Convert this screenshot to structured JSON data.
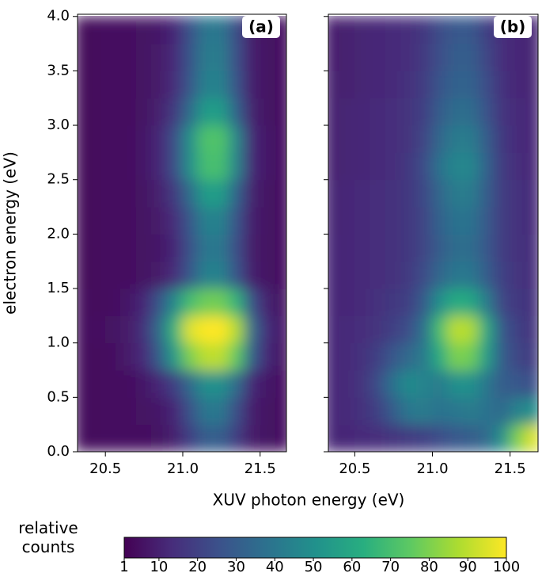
{
  "chart_data": [
    {
      "type": "heatmap",
      "panel_label": "(a)",
      "colormap": "viridis",
      "ylabel": "electron energy (eV)",
      "xlabel": "XUV photon energy (eV)",
      "xlim": [
        20.32,
        21.67
      ],
      "ylim": [
        0,
        4.02
      ],
      "xticks": [
        20.5,
        {
          "value": 21,
          "label": "21.0"
        },
        21.5
      ],
      "yticks": [
        {
          "value": 0,
          "label": "0.0"
        },
        0.5,
        {
          "value": 1,
          "label": "1.0"
        },
        1.5,
        {
          "value": 2,
          "label": "2.0"
        },
        2.5,
        {
          "value": 3,
          "label": "3.0"
        },
        3.5,
        {
          "value": 4,
          "label": "4.0"
        }
      ],
      "x": [
        20.35,
        20.45,
        20.55,
        20.65,
        20.75,
        20.85,
        20.95,
        21.05,
        21.15,
        21.25,
        21.35,
        21.45,
        21.55,
        21.65
      ],
      "y": [
        0.125,
        0.375,
        0.625,
        0.875,
        1.125,
        1.375,
        1.625,
        1.875,
        2.125,
        2.375,
        2.625,
        2.875,
        3.125,
        3.375,
        3.625,
        3.875
      ],
      "z": [
        [
          4,
          4,
          5,
          5,
          5,
          6,
          10,
          20,
          30,
          30,
          19,
          8,
          6,
          5
        ],
        [
          4,
          4,
          5,
          5,
          6,
          7,
          12,
          26,
          40,
          40,
          24,
          9,
          6,
          5
        ],
        [
          4,
          4,
          5,
          5,
          7,
          12,
          20,
          35,
          50,
          50,
          35,
          12,
          7,
          5
        ],
        [
          4,
          4,
          5,
          8,
          13,
          30,
          55,
          80,
          90,
          90,
          75,
          30,
          12,
          6
        ],
        [
          4,
          5,
          6,
          8,
          15,
          35,
          65,
          95,
          100,
          100,
          88,
          35,
          13,
          7
        ],
        [
          4,
          4,
          5,
          7,
          12,
          27,
          48,
          70,
          78,
          78,
          65,
          25,
          10,
          6
        ],
        [
          3,
          4,
          5,
          5,
          6,
          8,
          14,
          28,
          44,
          44,
          26,
          9,
          6,
          5
        ],
        [
          3,
          4,
          5,
          5,
          6,
          7,
          12,
          26,
          40,
          40,
          24,
          8,
          6,
          5
        ],
        [
          3,
          4,
          5,
          5,
          6,
          8,
          14,
          28,
          44,
          44,
          26,
          9,
          6,
          5
        ],
        [
          3,
          4,
          5,
          5,
          6,
          10,
          18,
          36,
          55,
          55,
          32,
          10,
          6,
          5
        ],
        [
          3,
          4,
          5,
          5,
          7,
          12,
          25,
          50,
          70,
          70,
          45,
          12,
          7,
          5
        ],
        [
          3,
          4,
          5,
          5,
          7,
          12,
          25,
          50,
          72,
          72,
          46,
          12,
          7,
          5
        ],
        [
          3,
          4,
          5,
          5,
          6,
          10,
          18,
          36,
          55,
          55,
          32,
          10,
          6,
          5
        ],
        [
          3,
          4,
          5,
          5,
          6,
          8,
          14,
          28,
          44,
          44,
          26,
          9,
          6,
          5
        ],
        [
          3,
          4,
          5,
          5,
          6,
          8,
          13,
          27,
          42,
          42,
          25,
          9,
          6,
          5
        ],
        [
          3,
          4,
          5,
          5,
          6,
          7,
          12,
          26,
          40,
          40,
          24,
          8,
          6,
          5
        ]
      ]
    },
    {
      "type": "heatmap",
      "panel_label": "(b)",
      "colormap": "viridis",
      "xlim": [
        20.33,
        21.68
      ],
      "ylim": [
        0,
        4.02
      ],
      "xticks": [
        20.5,
        {
          "value": 21,
          "label": "21.0"
        },
        21.5
      ],
      "yticks": [
        0,
        0.5,
        1,
        1.5,
        2,
        2.5,
        3,
        3.5,
        4
      ],
      "x": [
        20.35,
        20.45,
        20.55,
        20.65,
        20.75,
        20.85,
        20.95,
        21.05,
        21.15,
        21.25,
        21.35,
        21.45,
        21.55,
        21.65
      ],
      "y": [
        0.125,
        0.375,
        0.625,
        0.875,
        1.125,
        1.375,
        1.625,
        1.875,
        2.125,
        2.375,
        2.625,
        2.875,
        3.125,
        3.375,
        3.625,
        3.875
      ],
      "z": [
        [
          12,
          12,
          13,
          14,
          16,
          18,
          20,
          24,
          28,
          30,
          35,
          50,
          80,
          95
        ],
        [
          12,
          13,
          15,
          20,
          30,
          40,
          42,
          38,
          40,
          42,
          38,
          35,
          45,
          50
        ],
        [
          12,
          13,
          16,
          24,
          38,
          48,
          45,
          42,
          50,
          50,
          40,
          30,
          28,
          25
        ],
        [
          12,
          13,
          15,
          20,
          28,
          35,
          42,
          62,
          80,
          78,
          55,
          30,
          22,
          18
        ],
        [
          12,
          13,
          14,
          16,
          20,
          25,
          38,
          70,
          90,
          88,
          60,
          28,
          20,
          16
        ],
        [
          12,
          12,
          13,
          15,
          17,
          20,
          30,
          50,
          62,
          60,
          42,
          22,
          17,
          15
        ],
        [
          12,
          12,
          13,
          14,
          15,
          18,
          24,
          34,
          40,
          40,
          30,
          20,
          16,
          14
        ],
        [
          12,
          12,
          13,
          14,
          15,
          17,
          22,
          30,
          36,
          36,
          28,
          19,
          15,
          14
        ],
        [
          11,
          12,
          13,
          14,
          15,
          17,
          22,
          32,
          38,
          38,
          29,
          19,
          15,
          13
        ],
        [
          11,
          12,
          13,
          14,
          15,
          17,
          23,
          34,
          42,
          42,
          30,
          19,
          15,
          13
        ],
        [
          10,
          11,
          12,
          13,
          14,
          17,
          24,
          38,
          46,
          46,
          32,
          18,
          14,
          12
        ],
        [
          10,
          11,
          12,
          13,
          14,
          16,
          22,
          34,
          42,
          42,
          30,
          17,
          13,
          12
        ],
        [
          10,
          11,
          12,
          13,
          14,
          16,
          20,
          30,
          36,
          36,
          26,
          16,
          13,
          12
        ],
        [
          10,
          10,
          11,
          12,
          13,
          15,
          19,
          27,
          32,
          32,
          24,
          15,
          12,
          11
        ],
        [
          9,
          10,
          11,
          12,
          13,
          14,
          18,
          25,
          30,
          30,
          22,
          14,
          12,
          11
        ],
        [
          9,
          10,
          11,
          12,
          13,
          14,
          17,
          24,
          28,
          28,
          20,
          14,
          12,
          11
        ]
      ]
    }
  ],
  "colorbar": {
    "label": "relative counts",
    "lim": [
      1,
      100
    ],
    "ticks": [
      1,
      10,
      20,
      30,
      40,
      50,
      60,
      70,
      80,
      90,
      100
    ]
  }
}
